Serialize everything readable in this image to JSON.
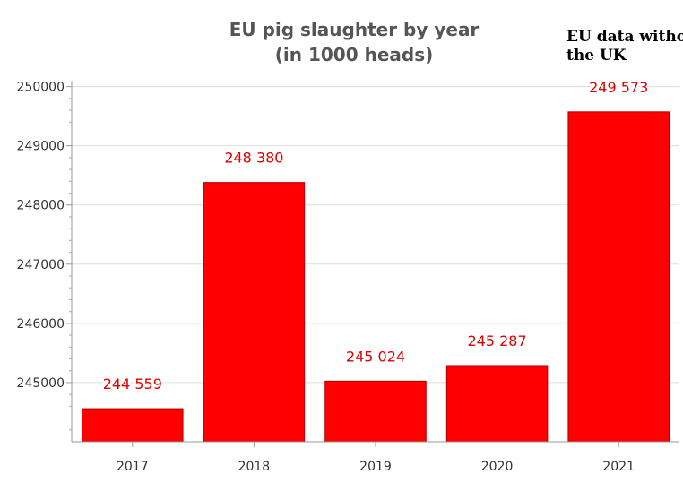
{
  "chart_data": {
    "type": "bar",
    "title_line1": "EU pig slaughter by year",
    "title_line2": "(in 1000 heads)",
    "note_line1": "EU data witho",
    "note_line2": "the UK",
    "categories": [
      "2017",
      "2018",
      "2019",
      "2020",
      "2021"
    ],
    "values": [
      244559,
      248380,
      245024,
      245287,
      249573
    ],
    "data_labels": [
      "244 559",
      "248 380",
      "245 024",
      "245 287",
      "249 573"
    ],
    "yticks": [
      245000,
      246000,
      247000,
      248000,
      249000,
      250000
    ],
    "ytick_labels": [
      "245000",
      "246000",
      "247000",
      "248000",
      "249000",
      "250000"
    ],
    "ylim": [
      244000,
      250100
    ],
    "xlabel": "",
    "ylabel": "",
    "grid": true,
    "legend": "none",
    "bar_color": "#ff0000",
    "bar_edge_color": "#b00000",
    "label_color": "#e00000"
  }
}
